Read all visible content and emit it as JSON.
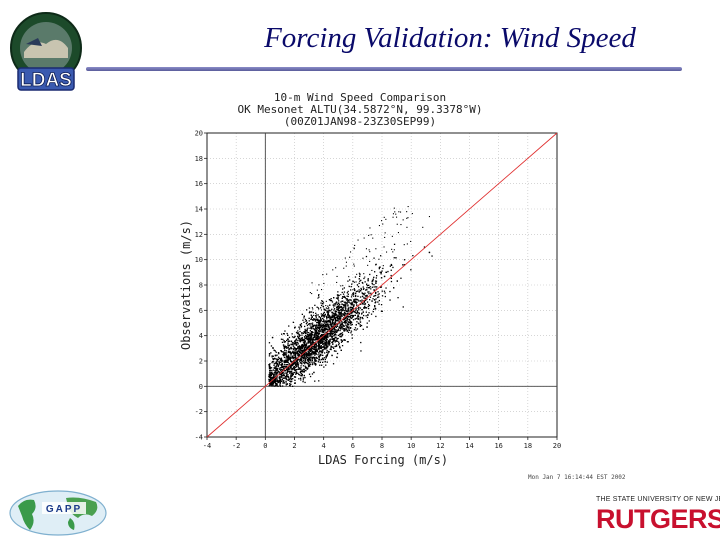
{
  "slide": {
    "title": "Forcing Validation: Wind Speed",
    "ldas_logo_text": "LDAS",
    "gapp_logo_text": "GAPP",
    "rutgers_tagline": "THE STATE UNIVERSITY OF NEW JERSEY",
    "rutgers_wordmark": "RUTGERS"
  },
  "chart_data": {
    "type": "scatter",
    "title_lines": [
      "10-m Wind Speed Comparison",
      "OK Mesonet ALTU(34.5872°N, 99.3378°W)",
      "(00Z01JAN98-23Z30SEP99)"
    ],
    "xlabel": "LDAS Forcing (m/s)",
    "ylabel": "Observations (m/s)",
    "xlim": [
      -4,
      20
    ],
    "ylim": [
      -4,
      20
    ],
    "xticks": [
      -4,
      -2,
      0,
      2,
      4,
      6,
      8,
      10,
      12,
      14,
      16,
      18,
      20
    ],
    "yticks": [
      -4,
      -2,
      0,
      2,
      4,
      6,
      8,
      10,
      12,
      14,
      16,
      18,
      20
    ],
    "zero_lines": true,
    "reference_line": {
      "label": "1:1",
      "color": "#e03030"
    },
    "grid": true,
    "point_color": "#000000",
    "point_cloud_summary": {
      "x_range": [
        0,
        11.5
      ],
      "y_range": [
        0,
        14.5
      ],
      "densest_region": [
        3.5,
        3.5
      ],
      "relationship": "positive, roughly along 1:1 line"
    },
    "timestamp": "Mon Jan  7 16:14:44 EST 2002"
  }
}
